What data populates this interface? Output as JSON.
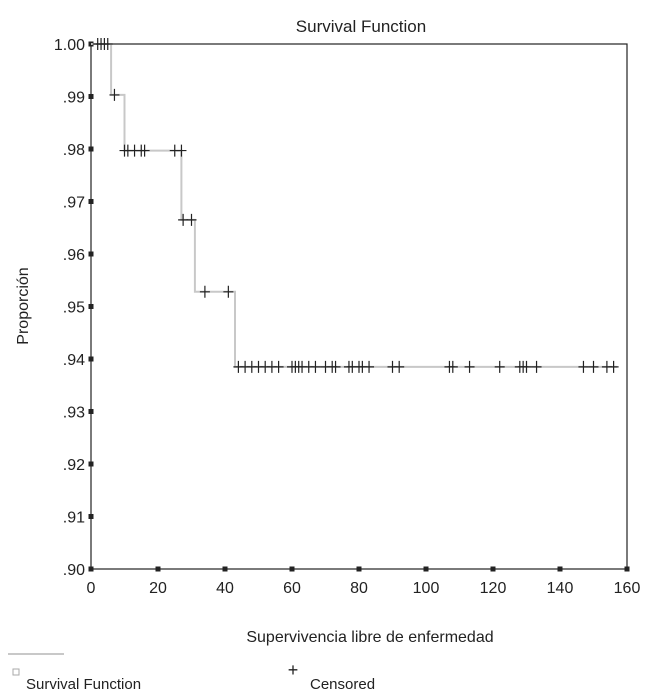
{
  "chart_data": {
    "type": "line",
    "title": "Survival Function",
    "xlabel": "Supervivencia libre de enfermedad",
    "ylabel": "Proporción",
    "xlim": [
      0,
      160
    ],
    "ylim": [
      0.9,
      1.0
    ],
    "x_ticks": [
      0,
      20,
      40,
      60,
      80,
      100,
      120,
      140,
      160
    ],
    "x_tick_labels": [
      "0",
      "20",
      "40",
      "60",
      "80",
      "100",
      "120",
      "140",
      "160"
    ],
    "y_ticks": [
      0.9,
      0.91,
      0.92,
      0.93,
      0.94,
      0.95,
      0.96,
      0.97,
      0.98,
      0.99,
      1.0
    ],
    "y_tick_labels": [
      ".90",
      ".91",
      ".92",
      ".93",
      ".94",
      ".95",
      ".96",
      ".97",
      ".98",
      ".99",
      "1.00"
    ],
    "grid": false,
    "legend": {
      "placement": "bottom-left",
      "entries": [
        "Survival Function",
        "Censored"
      ]
    },
    "colors": {
      "survival_line": "#c8c8c8",
      "censored_mark": "#222222",
      "axis": "#222222"
    },
    "series": [
      {
        "name": "Survival Function",
        "style": "step",
        "x": [
          0,
          6,
          6,
          10,
          10,
          27,
          27,
          31,
          31,
          43,
          43,
          157
        ],
        "y": [
          1.0,
          1.0,
          0.9903,
          0.9903,
          0.9797,
          0.9797,
          0.9665,
          0.9665,
          0.9528,
          0.9528,
          0.9385,
          0.9385
        ]
      },
      {
        "name": "Censored",
        "style": "marker-plus",
        "points": [
          [
            2,
            1.0
          ],
          [
            3,
            1.0
          ],
          [
            4,
            1.0
          ],
          [
            5,
            1.0
          ],
          [
            7,
            0.9903
          ],
          [
            10,
            0.9797
          ],
          [
            11,
            0.9797
          ],
          [
            13,
            0.9797
          ],
          [
            15,
            0.9797
          ],
          [
            16,
            0.9797
          ],
          [
            25,
            0.9797
          ],
          [
            27,
            0.9797
          ],
          [
            27.5,
            0.9665
          ],
          [
            30,
            0.9665
          ],
          [
            34,
            0.9528
          ],
          [
            41,
            0.9528
          ],
          [
            44,
            0.9385
          ],
          [
            46,
            0.9385
          ],
          [
            48,
            0.9385
          ],
          [
            50,
            0.9385
          ],
          [
            52,
            0.9385
          ],
          [
            54,
            0.9385
          ],
          [
            56,
            0.9385
          ],
          [
            60,
            0.9385
          ],
          [
            61,
            0.9385
          ],
          [
            62,
            0.9385
          ],
          [
            63,
            0.9385
          ],
          [
            65,
            0.9385
          ],
          [
            67,
            0.9385
          ],
          [
            70,
            0.9385
          ],
          [
            72,
            0.9385
          ],
          [
            73,
            0.9385
          ],
          [
            77,
            0.9385
          ],
          [
            78,
            0.9385
          ],
          [
            80,
            0.9385
          ],
          [
            81,
            0.9385
          ],
          [
            83,
            0.9385
          ],
          [
            90,
            0.9385
          ],
          [
            92,
            0.9385
          ],
          [
            107,
            0.9385
          ],
          [
            108,
            0.9385
          ],
          [
            113,
            0.9385
          ],
          [
            122,
            0.9385
          ],
          [
            128,
            0.9385
          ],
          [
            129,
            0.9385
          ],
          [
            130,
            0.9385
          ],
          [
            133,
            0.9385
          ],
          [
            147,
            0.9385
          ],
          [
            150,
            0.9385
          ],
          [
            154,
            0.9385
          ],
          [
            156,
            0.9385
          ]
        ]
      }
    ]
  }
}
